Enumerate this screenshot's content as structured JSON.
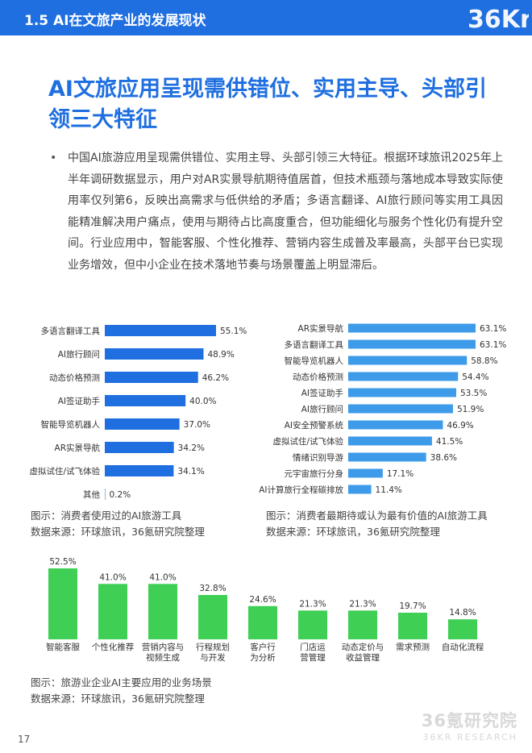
{
  "header": {
    "section_title": "1.5 AI在文旅产业的发展现状",
    "logo_text": "36Kr",
    "color": "#1f6fe0"
  },
  "headline": "AI文旅应用呈现需供错位、实用主导、头部引领三大特征",
  "paragraph": "中国AI旅游应用呈现需供错位、实用主导、头部引领三大特征。根据环球旅讯2025年上半年调研数据显示，用户对AR实景导航期待值居首，但技术瓶颈与落地成本导致实际使用率仅列第6，反映出高需求与低供给的矛盾；多语言翻译、AI旅行顾问等实用工具因能精准解决用户痛点，使用与期待占比高度重合，但功能细化与服务个性化仍有提升空间。行业应用中，智能客服、个性化推荐、营销内容生成普及率最高，头部平台已实现业务增效，但中小企业在技术落地节奏与场景覆盖上明显滞后。",
  "chart_data": [
    {
      "type": "bar",
      "orientation": "horizontal",
      "color": "#1f6fe0",
      "categories": [
        "多语言翻译工具",
        "AI旅行顾问",
        "动态价格预测",
        "AI签证助手",
        "智能导览机器人",
        "AR实景导航",
        "虚拟试住/试飞体验",
        "其他"
      ],
      "values": [
        55.1,
        48.9,
        46.2,
        40.0,
        37.0,
        34.2,
        34.1,
        0.2
      ],
      "labels": [
        "55.1%",
        "48.9%",
        "46.2%",
        "40.0%",
        "37.0%",
        "34.2%",
        "34.1%",
        "0.2%"
      ],
      "caption": "图示：消费者使用过的AI旅游工具",
      "source": "数据来源：环球旅讯，36氪研究院整理"
    },
    {
      "type": "bar",
      "orientation": "horizontal",
      "color": "#3d9be9",
      "categories": [
        "AR实景导航",
        "多语言翻译工具",
        "智能导览机器人",
        "动态价格预测",
        "AI签证助手",
        "AI旅行顾问",
        "AI安全预警系统",
        "虚拟试住/试飞体验",
        "情绪识别导游",
        "元宇宙旅行分身",
        "AI计算旅行全程碳排放"
      ],
      "values": [
        63.1,
        63.1,
        58.8,
        54.4,
        53.5,
        51.9,
        46.9,
        41.5,
        38.6,
        17.1,
        11.4
      ],
      "labels": [
        "63.1%",
        "63.1%",
        "58.8%",
        "54.4%",
        "53.5%",
        "51.9%",
        "46.9%",
        "41.5%",
        "38.6%",
        "17.1%",
        "11.4%"
      ],
      "caption": "图示：消费者最期待或认为最有价值的AI旅游工具",
      "source": "数据来源：环球旅讯，36氪研究院整理"
    },
    {
      "type": "bar",
      "orientation": "vertical",
      "color": "#3fcf55",
      "categories": [
        [
          "智能客服"
        ],
        [
          "个性化推荐"
        ],
        [
          "营销内容与",
          "视频生成"
        ],
        [
          "行程规划",
          "与开发"
        ],
        [
          "客户行",
          "为分析"
        ],
        [
          "门店运",
          "营管理"
        ],
        [
          "动态定价与",
          "收益管理"
        ],
        [
          "需求预测"
        ],
        [
          "自动化流程"
        ]
      ],
      "values": [
        52.5,
        41.0,
        41.0,
        32.8,
        24.6,
        21.3,
        21.3,
        19.7,
        14.8
      ],
      "labels": [
        "52.5%",
        "41.0%",
        "41.0%",
        "32.8%",
        "24.6%",
        "21.3%",
        "21.3%",
        "19.7%",
        "14.8%"
      ],
      "caption": "图示：旅游业企业AI主要应用的业务场景",
      "source": "数据来源：环球旅讯，36氪研究院整理"
    }
  ],
  "footer": {
    "page_number": "17",
    "watermark_cn": "36氪研究院",
    "watermark_en": "36KR RESEARCH"
  }
}
